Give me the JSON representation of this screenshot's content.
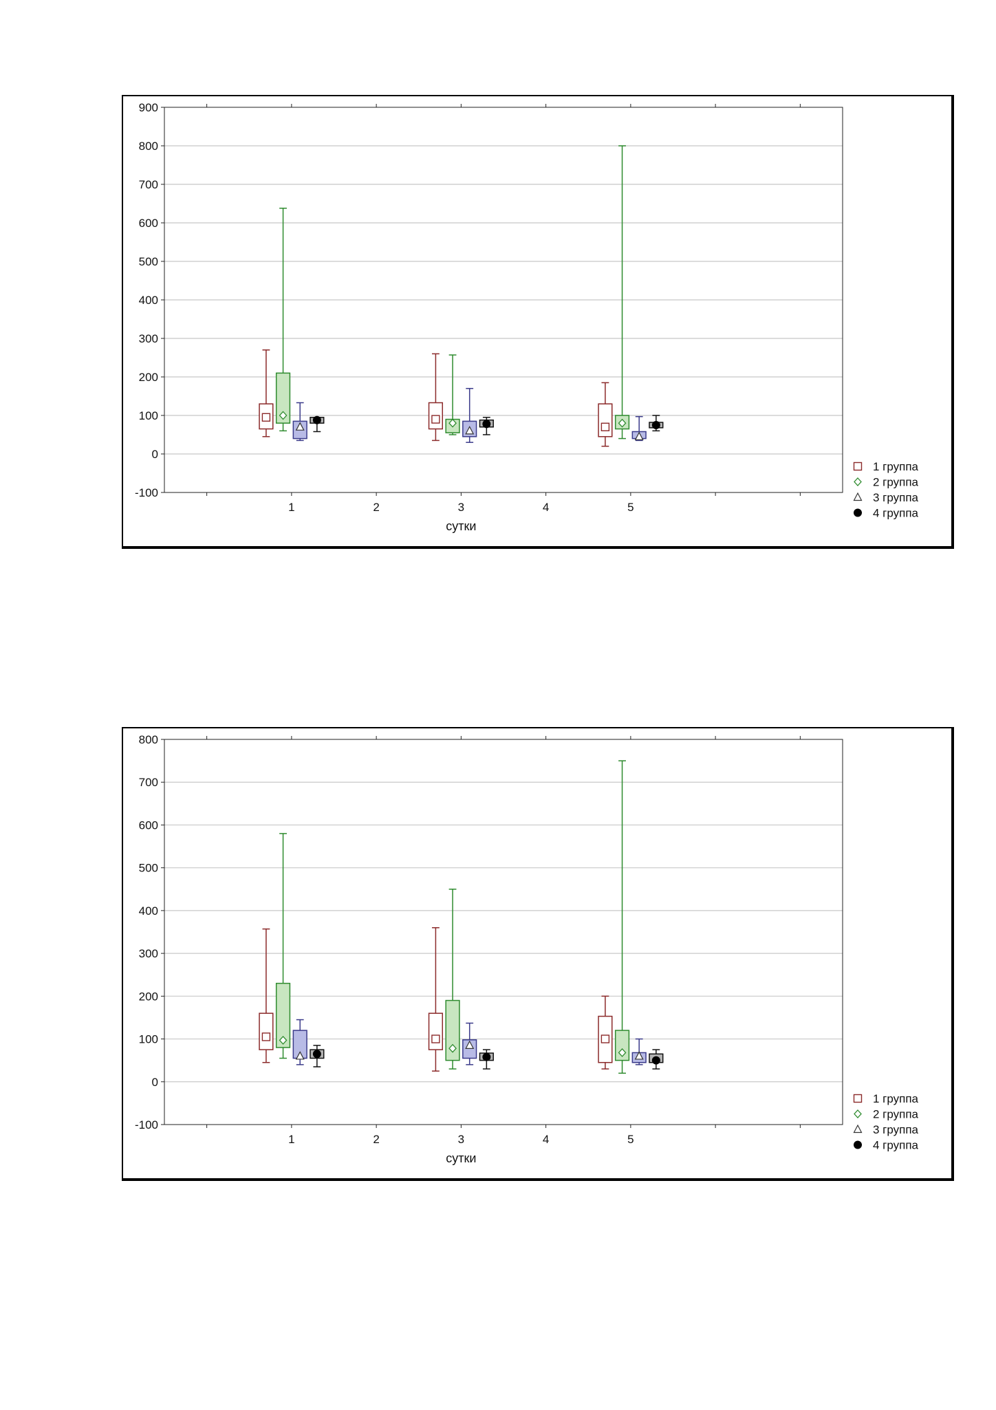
{
  "charts_meta": {
    "series_colors": [
      "#8b2a2a",
      "#2e8b2e",
      "#3a3a8a",
      "#111111"
    ],
    "box_fills": [
      "#ffffff",
      "#c8e6c0",
      "#b8bbe6",
      "#b4b4b4"
    ],
    "marker_types": [
      "square",
      "diamond",
      "triangle",
      "circle"
    ]
  },
  "chart_data": [
    {
      "type": "box",
      "xlabel": "сутки",
      "ylabel": "",
      "title": "",
      "x_ticks": [
        1,
        2,
        3,
        4,
        5
      ],
      "x_tick_labels": [
        "1",
        "2",
        "3",
        "4",
        "5"
      ],
      "x_range": [
        -0.5,
        7.5
      ],
      "ylim": [
        -100,
        900
      ],
      "y_ticks": [
        -100,
        0,
        100,
        200,
        300,
        400,
        500,
        600,
        700,
        800,
        900
      ],
      "y_tick_labels": [
        "-100",
        "0",
        "100",
        "200",
        "300",
        "400",
        "500",
        "600",
        "700",
        "800",
        "900"
      ],
      "grid": true,
      "legend_position": "bottom-right",
      "series": [
        {
          "name": "1 группа",
          "data": [
            {
              "x": 1,
              "min": 45,
              "q1": 65,
              "median": 95,
              "q3": 130,
              "max": 270
            },
            {
              "x": 3,
              "min": 35,
              "q1": 65,
              "median": 90,
              "q3": 133,
              "max": 260
            },
            {
              "x": 5,
              "min": 20,
              "q1": 45,
              "median": 70,
              "q3": 130,
              "max": 185
            }
          ]
        },
        {
          "name": "2 группа",
          "data": [
            {
              "x": 1,
              "min": 60,
              "q1": 80,
              "median": 100,
              "q3": 210,
              "max": 638
            },
            {
              "x": 3,
              "min": 50,
              "q1": 55,
              "median": 80,
              "q3": 90,
              "max": 257
            },
            {
              "x": 5,
              "min": 40,
              "q1": 65,
              "median": 80,
              "q3": 100,
              "max": 800
            }
          ]
        },
        {
          "name": "3 группа",
          "data": [
            {
              "x": 1,
              "min": 35,
              "q1": 40,
              "median": 70,
              "q3": 85,
              "max": 133
            },
            {
              "x": 3,
              "min": 30,
              "q1": 45,
              "median": 60,
              "q3": 85,
              "max": 170
            },
            {
              "x": 5,
              "min": 35,
              "q1": 40,
              "median": 45,
              "q3": 58,
              "max": 97
            }
          ]
        },
        {
          "name": "4 группа",
          "data": [
            {
              "x": 1,
              "min": 58,
              "q1": 80,
              "median": 88,
              "q3": 95,
              "max": 95
            },
            {
              "x": 3,
              "min": 50,
              "q1": 70,
              "median": 78,
              "q3": 88,
              "max": 95
            },
            {
              "x": 5,
              "min": 60,
              "q1": 68,
              "median": 75,
              "q3": 82,
              "max": 100
            }
          ]
        }
      ]
    },
    {
      "type": "box",
      "xlabel": "сутки",
      "ylabel": "",
      "title": "",
      "x_ticks": [
        1,
        2,
        3,
        4,
        5
      ],
      "x_tick_labels": [
        "1",
        "2",
        "3",
        "4",
        "5"
      ],
      "x_range": [
        -0.5,
        7.5
      ],
      "ylim": [
        -100,
        800
      ],
      "y_ticks": [
        -100,
        0,
        100,
        200,
        300,
        400,
        500,
        600,
        700,
        800
      ],
      "y_tick_labels": [
        "-100",
        "0",
        "100",
        "200",
        "300",
        "400",
        "500",
        "600",
        "700",
        "800"
      ],
      "grid": true,
      "legend_position": "bottom-right",
      "series": [
        {
          "name": "1 группа",
          "data": [
            {
              "x": 1,
              "min": 45,
              "q1": 75,
              "median": 105,
              "q3": 160,
              "max": 357
            },
            {
              "x": 3,
              "min": 25,
              "q1": 75,
              "median": 100,
              "q3": 160,
              "max": 360
            },
            {
              "x": 5,
              "min": 30,
              "q1": 45,
              "median": 100,
              "q3": 153,
              "max": 200
            }
          ]
        },
        {
          "name": "2 группа",
          "data": [
            {
              "x": 1,
              "min": 55,
              "q1": 80,
              "median": 97,
              "q3": 230,
              "max": 580
            },
            {
              "x": 3,
              "min": 30,
              "q1": 50,
              "median": 78,
              "q3": 190,
              "max": 450
            },
            {
              "x": 5,
              "min": 20,
              "q1": 50,
              "median": 68,
              "q3": 120,
              "max": 750
            }
          ]
        },
        {
          "name": "3 группа",
          "data": [
            {
              "x": 1,
              "min": 40,
              "q1": 55,
              "median": 60,
              "q3": 120,
              "max": 145
            },
            {
              "x": 3,
              "min": 40,
              "q1": 55,
              "median": 85,
              "q3": 98,
              "max": 137
            },
            {
              "x": 5,
              "min": 40,
              "q1": 45,
              "median": 60,
              "q3": 68,
              "max": 100
            }
          ]
        },
        {
          "name": "4 группа",
          "data": [
            {
              "x": 1,
              "min": 35,
              "q1": 55,
              "median": 65,
              "q3": 75,
              "max": 85
            },
            {
              "x": 3,
              "min": 30,
              "q1": 50,
              "median": 58,
              "q3": 67,
              "max": 75
            },
            {
              "x": 5,
              "min": 30,
              "q1": 45,
              "median": 50,
              "q3": 65,
              "max": 75
            }
          ]
        }
      ]
    }
  ]
}
